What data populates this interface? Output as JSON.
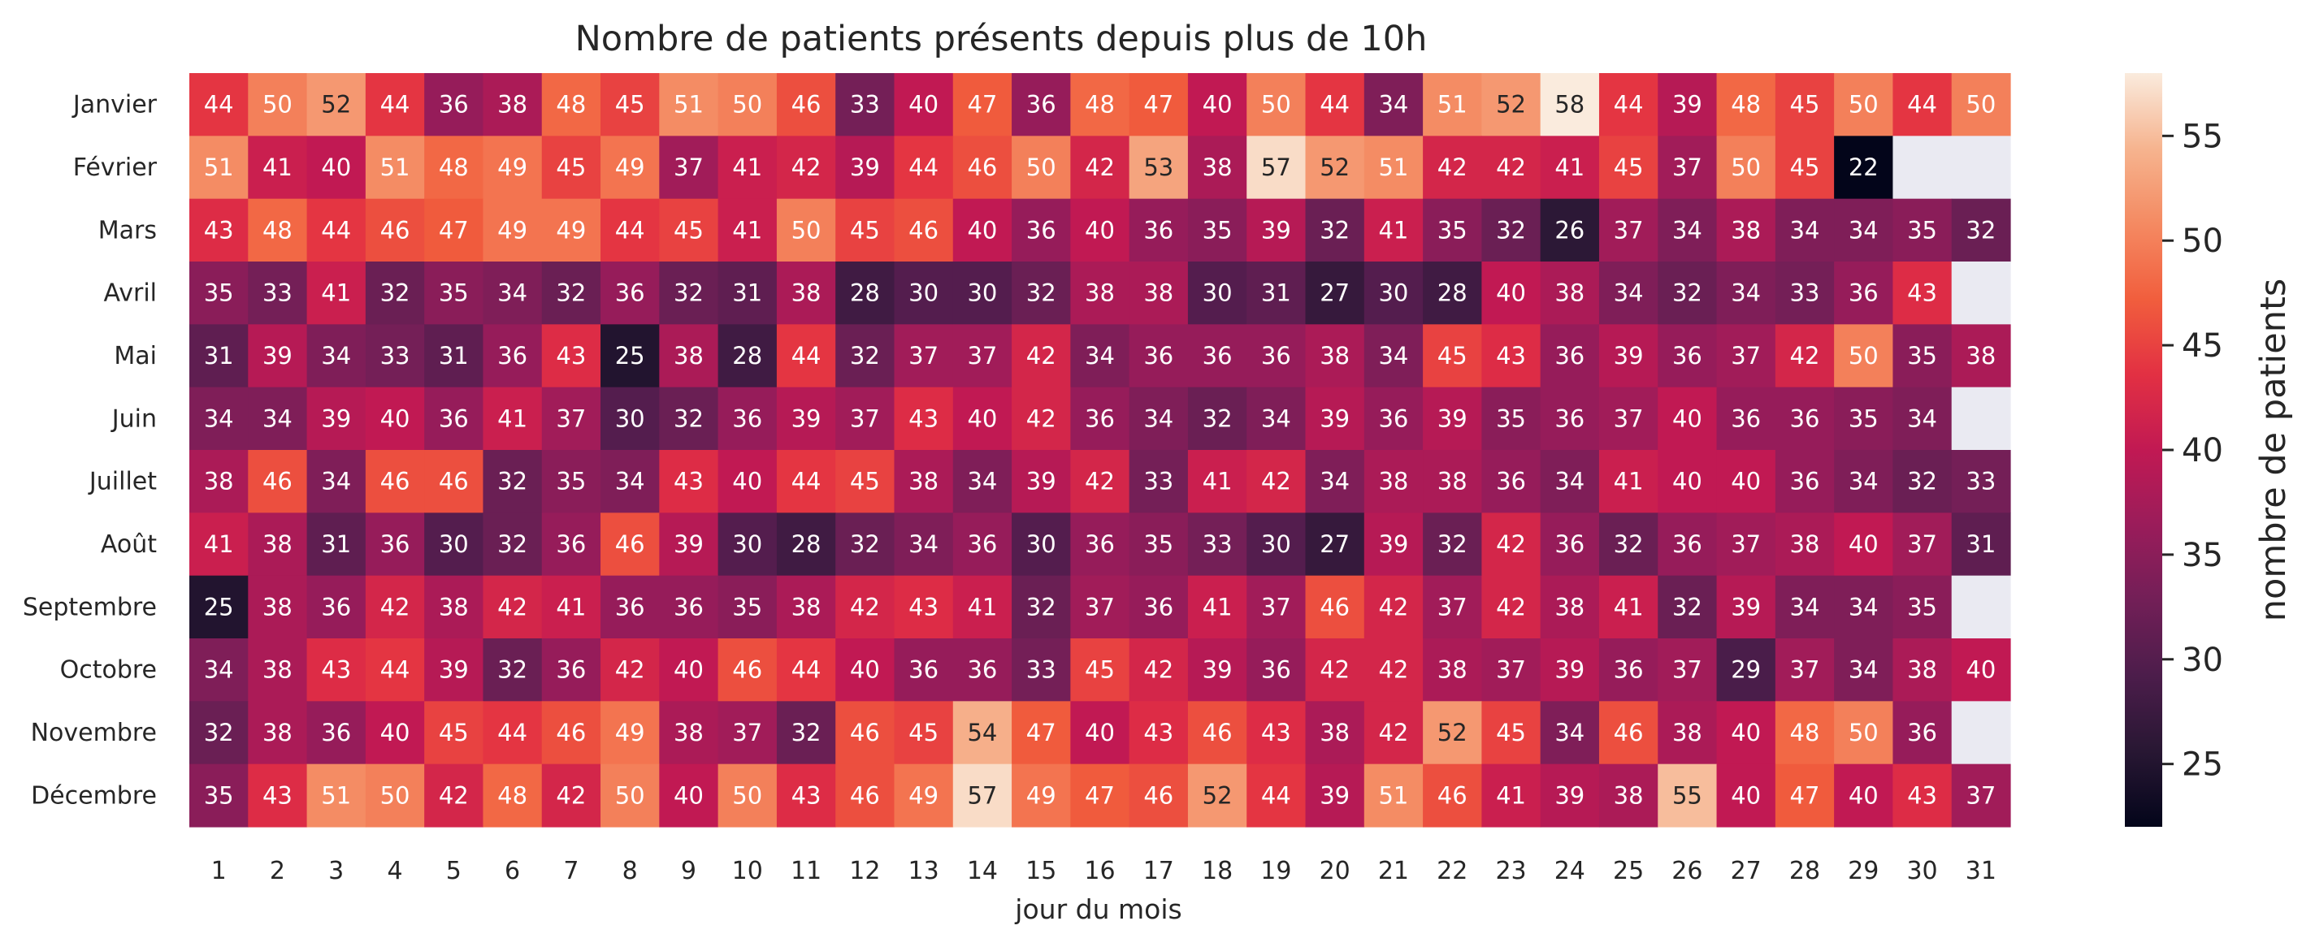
{
  "chart_data": {
    "type": "heatmap",
    "title": "Nombre de patients présents depuis plus de 10h",
    "xlabel": "jour du mois",
    "colorbar_label": "nombre de patients",
    "colorbar_ticks": [
      25,
      30,
      35,
      40,
      45,
      50,
      55
    ],
    "vmin": 22,
    "vmax": 58,
    "colormap": "rocket",
    "missing_color": "#eaeaf2",
    "x_categories": [
      "1",
      "2",
      "3",
      "4",
      "5",
      "6",
      "7",
      "8",
      "9",
      "10",
      "11",
      "12",
      "13",
      "14",
      "15",
      "16",
      "17",
      "18",
      "19",
      "20",
      "21",
      "22",
      "23",
      "24",
      "25",
      "26",
      "27",
      "28",
      "29",
      "30",
      "31"
    ],
    "y_categories": [
      "Janvier",
      "Février",
      "Mars",
      "Avril",
      "Mai",
      "Juin",
      "Juillet",
      "Août",
      "Septembre",
      "Octobre",
      "Novembre",
      "Décembre"
    ],
    "values": [
      [
        44,
        50,
        52,
        44,
        36,
        38,
        48,
        45,
        51,
        50,
        46,
        33,
        40,
        47,
        36,
        48,
        47,
        40,
        50,
        44,
        34,
        51,
        52,
        58,
        44,
        39,
        48,
        45,
        50,
        44,
        50
      ],
      [
        51,
        41,
        40,
        51,
        48,
        49,
        45,
        49,
        37,
        41,
        42,
        39,
        44,
        46,
        50,
        42,
        53,
        38,
        57,
        52,
        51,
        42,
        42,
        41,
        45,
        37,
        50,
        45,
        22,
        null,
        null
      ],
      [
        43,
        48,
        44,
        46,
        47,
        49,
        49,
        44,
        45,
        41,
        50,
        45,
        46,
        40,
        36,
        40,
        36,
        35,
        39,
        32,
        41,
        35,
        32,
        26,
        37,
        34,
        38,
        34,
        34,
        35,
        32
      ],
      [
        35,
        33,
        41,
        32,
        35,
        34,
        32,
        36,
        32,
        31,
        38,
        28,
        30,
        30,
        32,
        38,
        38,
        30,
        31,
        27,
        30,
        28,
        40,
        38,
        34,
        32,
        34,
        33,
        36,
        43,
        null
      ],
      [
        31,
        39,
        34,
        33,
        31,
        36,
        43,
        25,
        38,
        28,
        44,
        32,
        37,
        37,
        42,
        34,
        36,
        36,
        36,
        38,
        34,
        45,
        43,
        36,
        39,
        36,
        37,
        42,
        50,
        35,
        38
      ],
      [
        34,
        34,
        39,
        40,
        36,
        41,
        37,
        30,
        32,
        36,
        39,
        37,
        43,
        40,
        42,
        36,
        34,
        32,
        34,
        39,
        36,
        39,
        35,
        36,
        37,
        40,
        36,
        36,
        35,
        34,
        null
      ],
      [
        38,
        46,
        34,
        46,
        46,
        32,
        35,
        34,
        43,
        40,
        44,
        45,
        38,
        34,
        39,
        42,
        33,
        41,
        42,
        34,
        38,
        38,
        36,
        34,
        41,
        40,
        40,
        36,
        34,
        32,
        33
      ],
      [
        41,
        38,
        31,
        36,
        30,
        32,
        36,
        46,
        39,
        30,
        28,
        32,
        34,
        36,
        30,
        36,
        35,
        33,
        30,
        27,
        39,
        32,
        42,
        36,
        32,
        36,
        37,
        38,
        40,
        37,
        31
      ],
      [
        25,
        38,
        36,
        42,
        38,
        42,
        41,
        36,
        36,
        35,
        38,
        42,
        43,
        41,
        32,
        37,
        36,
        41,
        37,
        46,
        42,
        37,
        42,
        38,
        41,
        32,
        39,
        34,
        34,
        35,
        null
      ],
      [
        34,
        38,
        43,
        44,
        39,
        32,
        36,
        42,
        40,
        46,
        44,
        40,
        36,
        36,
        33,
        45,
        42,
        39,
        36,
        42,
        42,
        38,
        37,
        39,
        36,
        37,
        29,
        37,
        34,
        38,
        40
      ],
      [
        32,
        38,
        36,
        40,
        45,
        44,
        46,
        49,
        38,
        37,
        32,
        46,
        45,
        54,
        47,
        40,
        43,
        46,
        43,
        38,
        42,
        52,
        45,
        34,
        46,
        38,
        40,
        48,
        50,
        36,
        null
      ],
      [
        35,
        43,
        51,
        50,
        42,
        48,
        42,
        50,
        40,
        50,
        43,
        46,
        49,
        57,
        49,
        47,
        46,
        52,
        44,
        39,
        51,
        46,
        41,
        39,
        38,
        55,
        40,
        47,
        40,
        43,
        37
      ]
    ]
  }
}
